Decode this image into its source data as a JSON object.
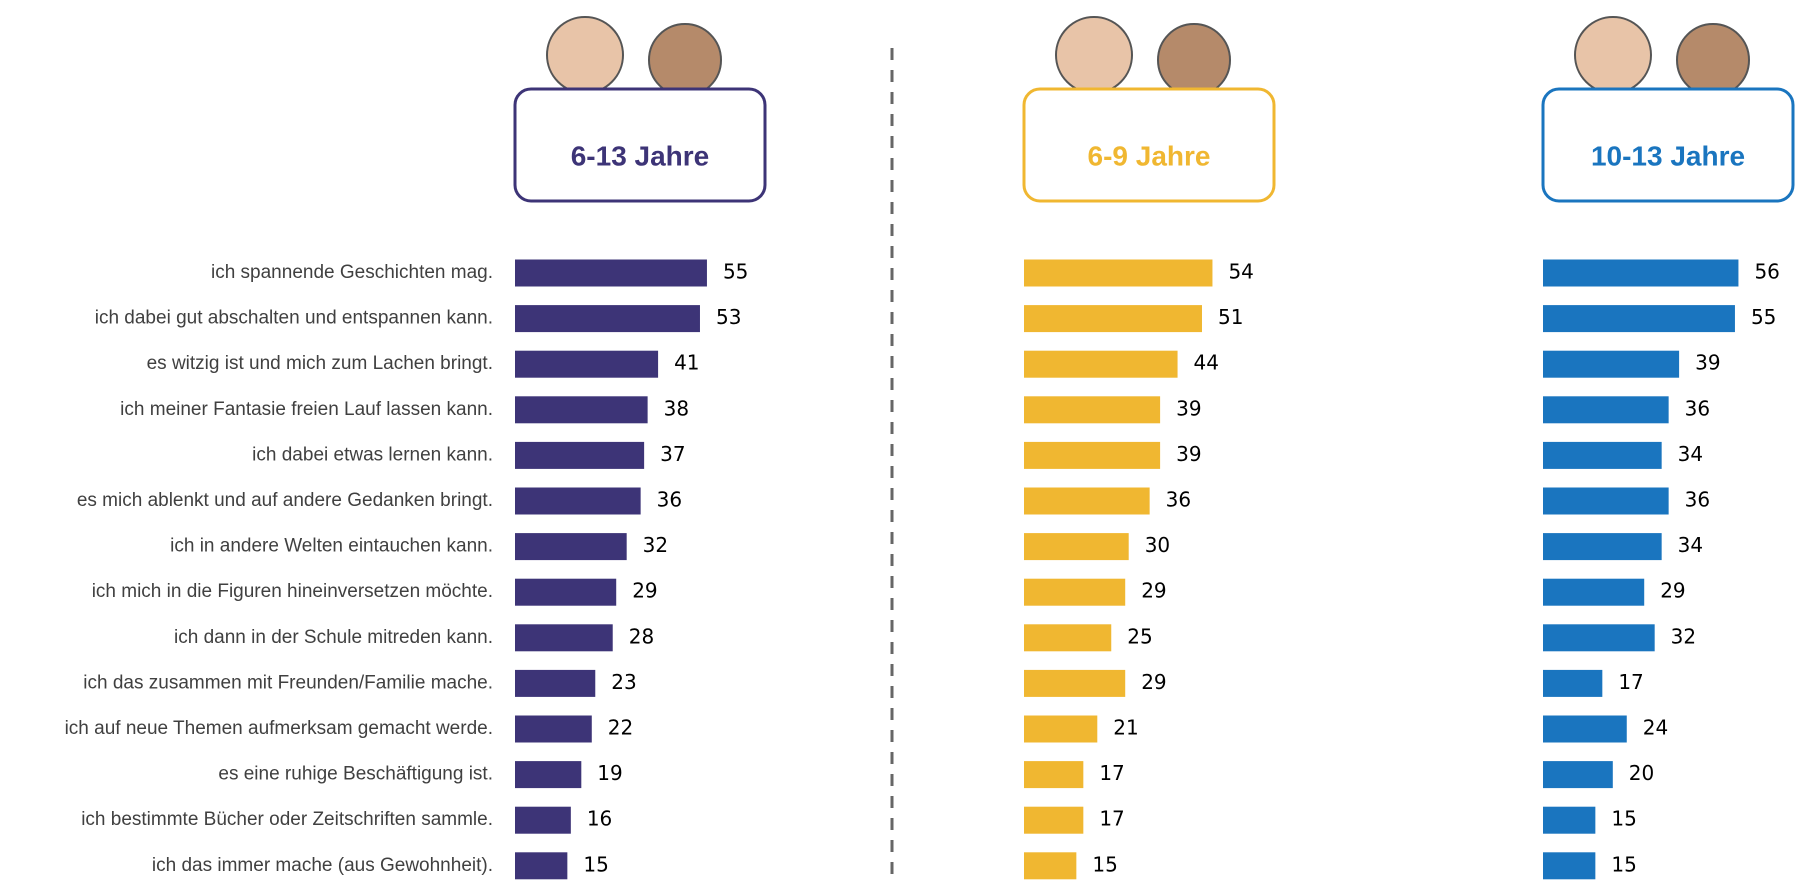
{
  "chart_data": [
    {
      "type": "bar",
      "title": "6-13 Jahre",
      "color": "#3d3477",
      "categories": [
        "ich spannende Geschichten mag.",
        "ich dabei gut abschalten und entspannen kann.",
        "es witzig ist und mich zum Lachen bringt.",
        "ich meiner Fantasie freien Lauf lassen kann.",
        "ich dabei etwas lernen kann.",
        "es mich ablenkt und auf andere Gedanken bringt.",
        "ich in andere Welten eintauchen kann.",
        "ich mich in die Figuren hineinversetzen möchte.",
        "ich dann in der Schule mitreden kann.",
        "ich das zusammen mit Freunden/Familie mache.",
        "ich auf neue Themen aufmerksam gemacht werde.",
        "es eine ruhige Beschäftigung ist.",
        "ich bestimmte Bücher oder Zeitschriften sammle.",
        "ich das immer mache (aus Gewohnheit)."
      ],
      "values": [
        55,
        53,
        41,
        38,
        37,
        36,
        32,
        29,
        28,
        23,
        22,
        19,
        16,
        15
      ]
    },
    {
      "type": "bar",
      "title": "6-9 Jahre",
      "color": "#f0b731",
      "values": [
        54,
        51,
        44,
        39,
        39,
        36,
        30,
        29,
        25,
        29,
        21,
        17,
        17,
        15
      ]
    },
    {
      "type": "bar",
      "title": "10-13 Jahre",
      "color": "#1a75bf",
      "values": [
        56,
        55,
        39,
        36,
        34,
        36,
        34,
        29,
        32,
        17,
        24,
        20,
        15,
        15
      ]
    }
  ]
}
